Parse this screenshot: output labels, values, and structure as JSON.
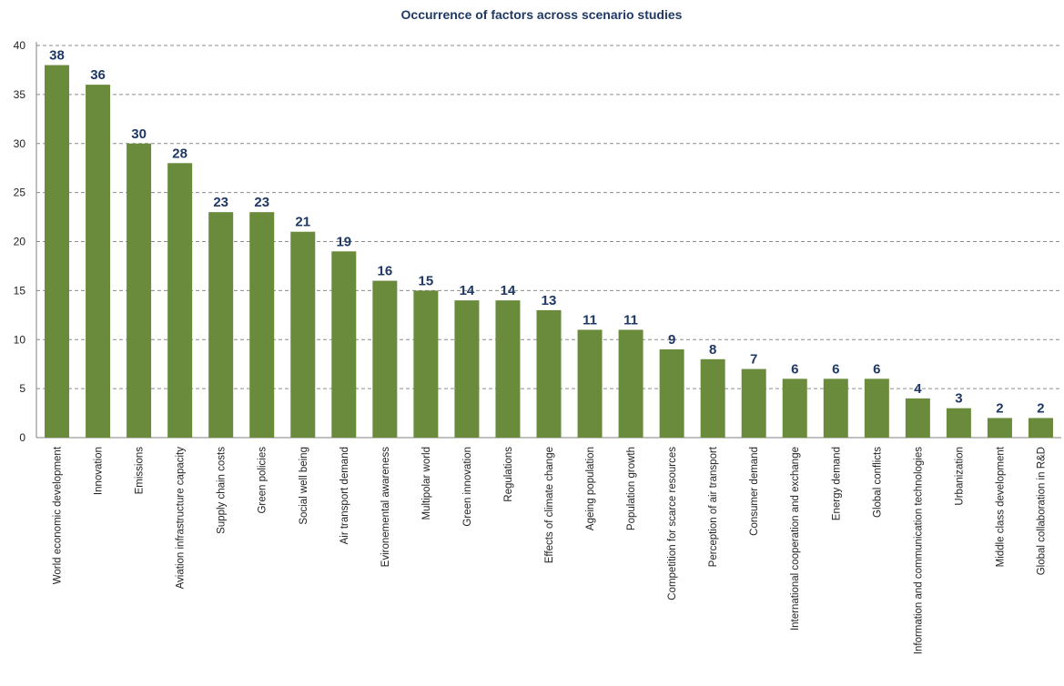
{
  "chart_data": {
    "type": "bar",
    "title": "Occurrence of factors across scenario studies",
    "xlabel": "",
    "ylabel": "",
    "ylim": [
      0,
      40
    ],
    "yticks": [
      0,
      5,
      10,
      15,
      20,
      25,
      30,
      35,
      40
    ],
    "grid": true,
    "legend": "none",
    "bar_color": "#6a8a3c",
    "label_color": "#1f3864",
    "categories": [
      "World economic development",
      "Innovation",
      "Emissions",
      "Aviation infrastructure capacity",
      "Supply chain costs",
      "Green policies",
      "Social well being",
      "Air transport demand",
      "Evironemental awareness",
      "Multipolar world",
      "Green innovation",
      "Regulations",
      "Effects of climate change",
      "Ageing population",
      "Population growth",
      "Competition for scarce resources",
      "Perception of air transport",
      "Consumer demand",
      "International cooperation and exchange",
      "Energy demand",
      "Global conflicts",
      "Information and communication technologies",
      "Urbanization",
      "Middle class development",
      "Global collaboration in R&D"
    ],
    "values": [
      38,
      36,
      30,
      28,
      23,
      23,
      21,
      19,
      16,
      15,
      14,
      14,
      13,
      11,
      11,
      9,
      8,
      7,
      6,
      6,
      6,
      4,
      3,
      2,
      2
    ]
  }
}
